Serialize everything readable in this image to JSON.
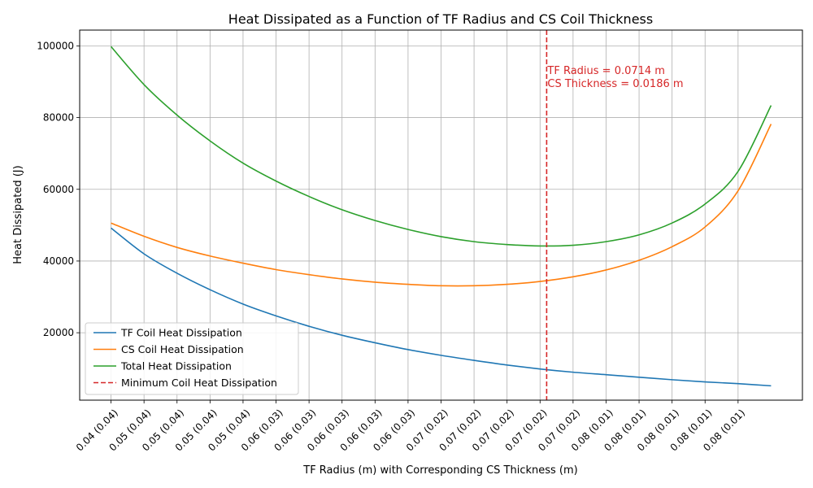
{
  "chart_data": {
    "type": "line",
    "title": "Heat Dissipated as a Function of TF Radius and CS Coil Thickness",
    "xlabel": "TF Radius (m) with Corresponding CS Thickness (m)",
    "ylabel": "Heat Dissipated (J)",
    "grid": true,
    "legend_position": "bottom-left",
    "xlim": [
      -0.95,
      20.95
    ],
    "ylim": [
      1200,
      104400
    ],
    "x_tick_positions": [
      0,
      1,
      2,
      3,
      4,
      5,
      6,
      7,
      8,
      9,
      10,
      11,
      12,
      13,
      14,
      15,
      16,
      17,
      18,
      19
    ],
    "x_tick_labels": [
      "0.04 (0.04)",
      "0.05 (0.04)",
      "0.05 (0.04)",
      "0.05 (0.04)",
      "0.05 (0.04)",
      "0.06 (0.03)",
      "0.06 (0.03)",
      "0.06 (0.03)",
      "0.06 (0.03)",
      "0.06 (0.03)",
      "0.07 (0.02)",
      "0.07 (0.02)",
      "0.07 (0.02)",
      "0.07 (0.02)",
      "0.07 (0.02)",
      "0.08 (0.01)",
      "0.08 (0.01)",
      "0.08 (0.01)",
      "0.08 (0.01)",
      "0.08 (0.01)"
    ],
    "y_ticks": [
      20000,
      40000,
      60000,
      80000,
      100000
    ],
    "y_tick_labels": [
      "20000",
      "40000",
      "60000",
      "80000",
      "100000"
    ],
    "x": [
      0,
      1,
      2,
      3,
      4,
      5,
      6,
      7,
      8,
      9,
      10,
      11,
      12,
      13,
      14,
      15,
      16,
      17,
      18,
      19,
      20
    ],
    "series": [
      {
        "name": "TF Coil Heat Dissipation",
        "color": "#1f77b4",
        "values": [
          49200,
          42000,
          36600,
          32000,
          28000,
          24700,
          21800,
          19300,
          17200,
          15300,
          13700,
          12300,
          11000,
          9900,
          9000,
          8300,
          7600,
          6900,
          6300,
          5800,
          5200
        ]
      },
      {
        "name": "CS Coil Heat Dissipation",
        "color": "#ff7f0e",
        "values": [
          50600,
          46900,
          43800,
          41400,
          39400,
          37600,
          36200,
          35000,
          34100,
          33500,
          33100,
          33100,
          33500,
          34300,
          35600,
          37500,
          40200,
          44000,
          49500,
          59600,
          78200
        ]
      },
      {
        "name": "Total Heat Dissipation",
        "color": "#2ca02c",
        "values": [
          99800,
          89200,
          80700,
          73500,
          67300,
          62300,
          58000,
          54300,
          51300,
          48800,
          46800,
          45400,
          44600,
          44200,
          44400,
          45400,
          47300,
          50600,
          55900,
          65000,
          83400
        ]
      }
    ],
    "marker": {
      "name": "Minimum Coil Heat Dissipation",
      "color": "#d62728",
      "x": 13.2,
      "y_top": 104400,
      "y_bottom": 1200,
      "annotation_lines": [
        "TF Radius = 0.0714 m",
        "CS Thickness = 0.0186 m"
      ]
    }
  }
}
